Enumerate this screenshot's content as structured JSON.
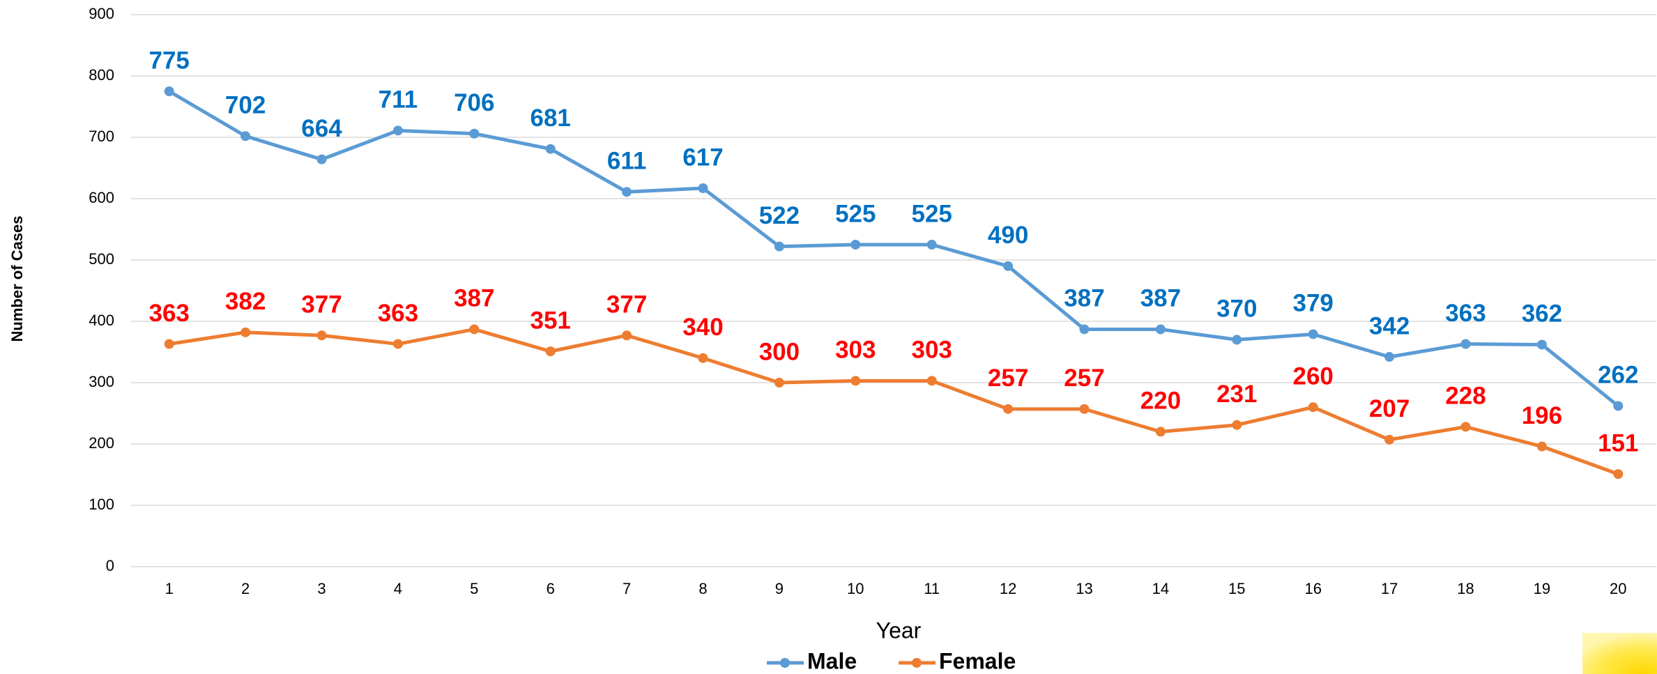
{
  "chart_data": {
    "type": "line",
    "x_label": "Year",
    "y_label": "Number of Cases",
    "categories": [
      1,
      2,
      3,
      4,
      5,
      6,
      7,
      8,
      9,
      10,
      11,
      12,
      13,
      14,
      15,
      16,
      17,
      18,
      19,
      20
    ],
    "series": [
      {
        "name": "Male",
        "color": "#5b9bd5",
        "label_color": "#0070c0",
        "values": [
          775,
          702,
          664,
          711,
          706,
          681,
          611,
          617,
          522,
          525,
          525,
          490,
          387,
          387,
          370,
          379,
          342,
          363,
          362,
          262
        ]
      },
      {
        "name": "Female",
        "color": "#ed7d31",
        "label_color": "#ff0000",
        "values": [
          363,
          382,
          377,
          363,
          387,
          351,
          377,
          340,
          300,
          303,
          303,
          257,
          257,
          220,
          231,
          260,
          207,
          228,
          196,
          151
        ]
      }
    ],
    "ylim": [
      0,
      900
    ],
    "yticks": [
      0,
      100,
      200,
      300,
      400,
      500,
      600,
      700,
      800,
      900
    ],
    "grid": true,
    "legend": "bottom"
  }
}
